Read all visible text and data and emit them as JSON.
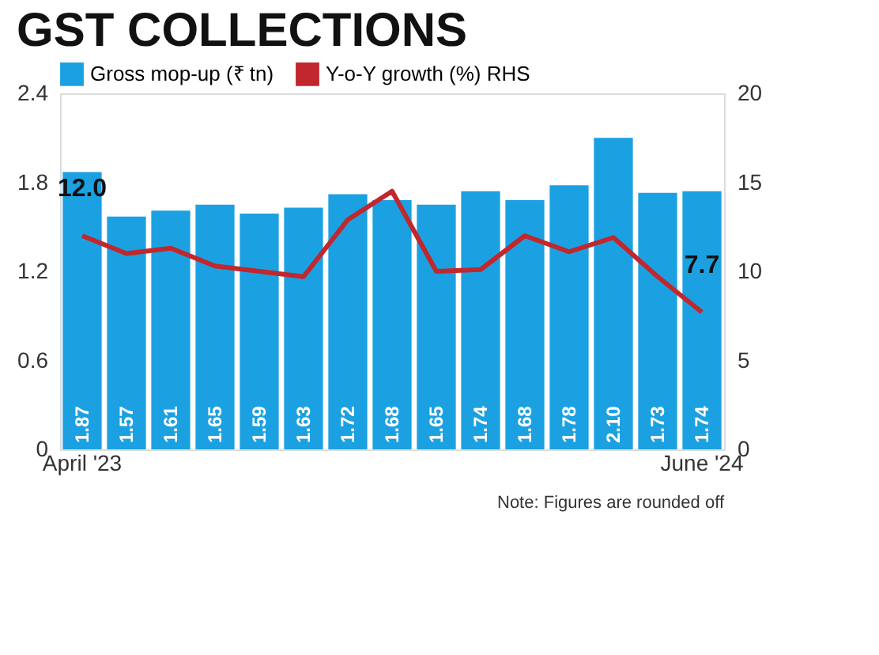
{
  "chart_data": {
    "type": "bar",
    "title": "GST COLLECTIONS",
    "categories": [
      "April '23",
      null,
      null,
      null,
      null,
      null,
      null,
      null,
      null,
      null,
      null,
      null,
      null,
      null,
      "June '24"
    ],
    "series": [
      {
        "name": "Gross mop-up (₹ tn)",
        "color": "#1ba1e2",
        "values": [
          1.87,
          1.57,
          1.61,
          1.65,
          1.59,
          1.63,
          1.72,
          1.68,
          1.65,
          1.74,
          1.68,
          1.78,
          2.1,
          1.73,
          1.74
        ],
        "value_labels": [
          "1.87",
          "1.57",
          "1.61",
          "1.65",
          "1.59",
          "1.63",
          "1.72",
          "1.68",
          "1.65",
          "1.74",
          "1.68",
          "1.78",
          "2.10",
          "1.73",
          "1.74"
        ]
      },
      {
        "name": "Y-o-Y growth (%) RHS",
        "type": "line",
        "axis": "y2",
        "color": "#c0282d",
        "values": [
          12.0,
          11.0,
          11.3,
          10.3,
          10.0,
          9.7,
          12.9,
          14.5,
          10.0,
          10.1,
          12.0,
          11.1,
          11.9,
          9.7,
          7.7
        ],
        "value_labels": [
          "12.0",
          null,
          null,
          null,
          null,
          null,
          null,
          null,
          null,
          null,
          null,
          null,
          null,
          null,
          "7.7"
        ]
      }
    ],
    "ylim": [
      0,
      2.4
    ],
    "yticks": [
      0,
      0.6,
      1.2,
      1.8,
      2.4
    ],
    "y2lim": [
      0,
      20
    ],
    "y2ticks": [
      0,
      5,
      10,
      15,
      20
    ],
    "legend": "top",
    "line_style": "solid",
    "annotations": [
      "Note: Figures are rounded off"
    ]
  }
}
